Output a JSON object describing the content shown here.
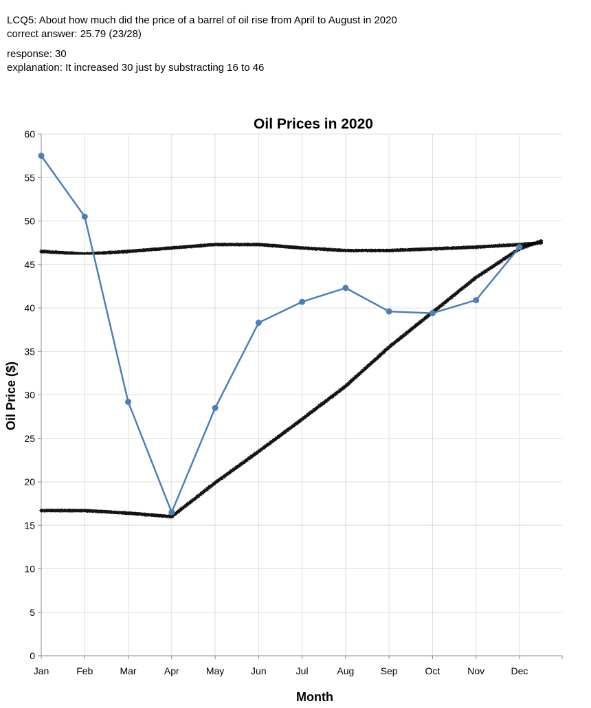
{
  "question": {
    "text": "LCQ5: About how much did the price of a barrel of oil rise from April to August in 2020",
    "correct_answer": "correct answer: 25.79 (23/28)"
  },
  "response": {
    "answer": "response: 30",
    "explanation": "explanation: It increased 30 just by substracting 16 to 46"
  },
  "chart_data": {
    "type": "line",
    "title": "Oil Prices in 2020",
    "xlabel": "Month",
    "ylabel": "Oil Price ($)",
    "categories": [
      "Jan",
      "Feb",
      "Mar",
      "Apr",
      "May",
      "Jun",
      "Jul",
      "Aug",
      "Sep",
      "Oct",
      "Nov",
      "Dec"
    ],
    "series": [
      {
        "values": [
          57.5,
          50.5,
          29.2,
          16.5,
          28.5,
          38.3,
          40.7,
          42.3,
          39.6,
          39.4,
          40.9,
          47.0
        ],
        "color": "#4c7fb8"
      }
    ],
    "yticks": [
      0,
      5,
      10,
      15,
      20,
      25,
      30,
      35,
      40,
      45,
      50,
      55,
      60
    ],
    "ylim": [
      0,
      60
    ],
    "grid": true,
    "annotations": {
      "type": "hand-drawn strokes",
      "color": "#000000",
      "strokes": [
        {
          "name": "upper-horizontal-stroke",
          "points": [
            [
              0,
              46.5
            ],
            [
              1,
              46.2
            ],
            [
              2,
              46.5
            ],
            [
              3,
              46.9
            ],
            [
              4,
              47.3
            ],
            [
              5,
              47.3
            ],
            [
              6,
              46.9
            ],
            [
              7,
              46.6
            ],
            [
              8,
              46.6
            ],
            [
              9,
              46.8
            ],
            [
              10,
              47.0
            ],
            [
              11,
              47.3
            ],
            [
              11.5,
              47.5
            ]
          ]
        },
        {
          "name": "lower-rising-stroke",
          "points": [
            [
              0,
              16.7
            ],
            [
              1,
              16.7
            ],
            [
              2,
              16.4
            ],
            [
              3,
              16.0
            ],
            [
              4,
              19.9
            ],
            [
              5,
              23.5
            ],
            [
              6,
              27.2
            ],
            [
              7,
              31.0
            ],
            [
              8,
              35.5
            ],
            [
              9,
              39.5
            ],
            [
              10,
              43.5
            ],
            [
              11,
              46.8
            ],
            [
              11.5,
              47.7
            ]
          ]
        }
      ]
    }
  }
}
